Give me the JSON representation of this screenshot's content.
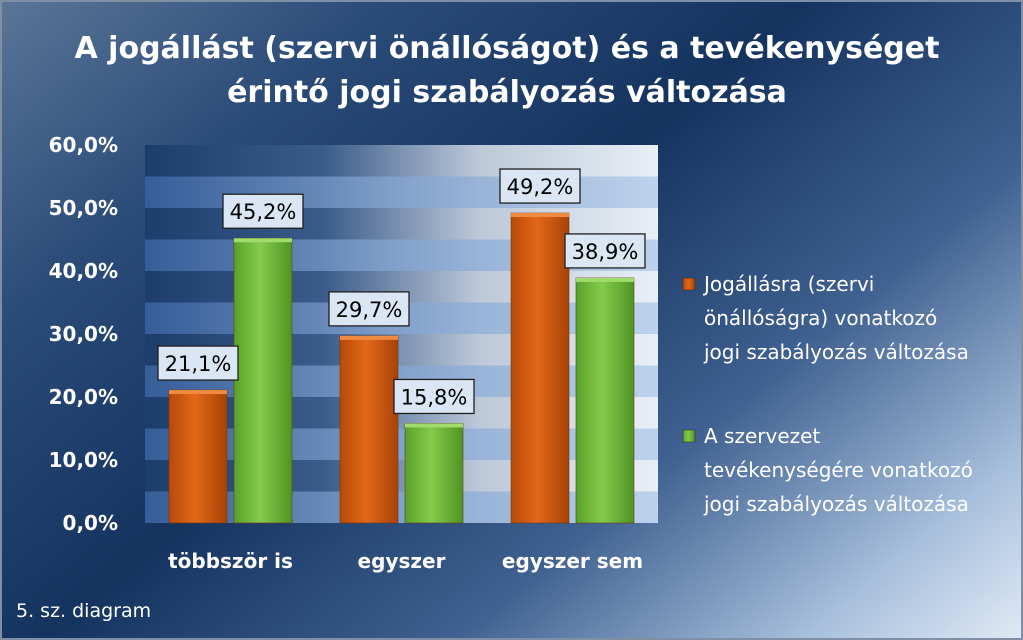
{
  "chart_data": {
    "type": "bar",
    "title": [
      "A jogállást (szervi önállóságot) és a tevékenységet",
      "érintő jogi szabályozás változása"
    ],
    "categories": [
      "többször is",
      "egyszer",
      "egyszer sem"
    ],
    "series": [
      {
        "name": "Jogállásra (szervi önállóságra) vonatkozó jogi szabályozás változása",
        "legend_lines": [
          "Jogállásra (szervi",
          "önállóságra) vonatkozó",
          "jogi szabályozás változása"
        ],
        "color": "#d45a12",
        "values": [
          21.1,
          29.7,
          49.2
        ],
        "labels": [
          "21,1%",
          "29,7%",
          "49,2%"
        ]
      },
      {
        "name": "A szervezet tevékenységére vonatkozó jogi szabályozás változása",
        "legend_lines": [
          "A szervezet",
          "tevékenységére vonatkozó",
          "jogi szabályozás változása"
        ],
        "color": "#6fb83a",
        "values": [
          45.2,
          15.8,
          38.9
        ],
        "labels": [
          "45,2%",
          "15,8%",
          "38,9%"
        ]
      }
    ],
    "ylim": [
      0,
      60
    ],
    "yticks": [
      0,
      10,
      20,
      30,
      40,
      50,
      60
    ],
    "ytick_labels": [
      "0,0%",
      "10,0%",
      "20,0%",
      "30,0%",
      "40,0%",
      "50,0%",
      "60,0%"
    ],
    "xlabel": "",
    "ylabel": "",
    "grid": true,
    "legend": "right"
  },
  "caption": "5. sz. diagram"
}
